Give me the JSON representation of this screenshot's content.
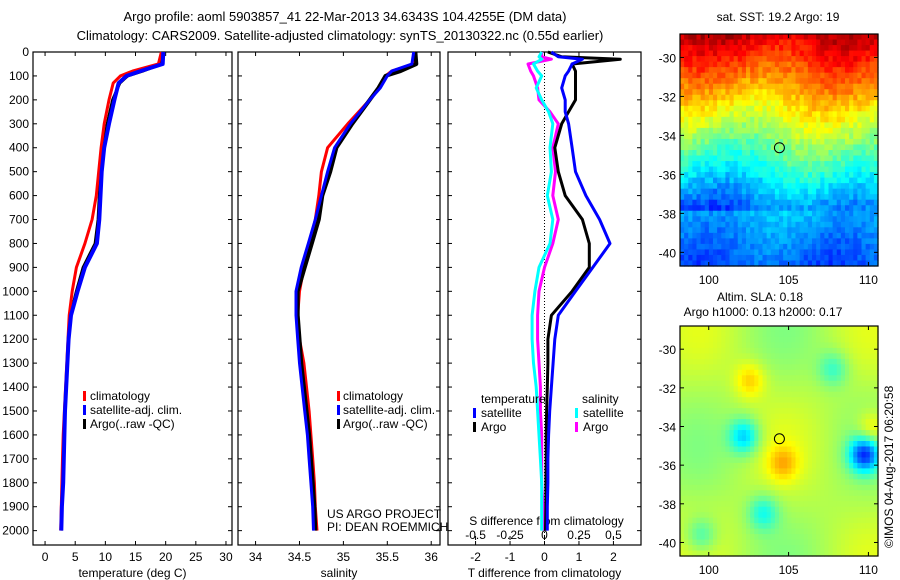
{
  "header": {
    "title_line1": "Argo profile: aoml 5903857_41 22-Mar-2013 34.6343S 104.4255E (DM data)",
    "title_line2": "Climatology: CARS2009. Satellite-adjusted climatology: synTS_20130322.nc (0.55d earlier)"
  },
  "colors": {
    "climatology": "#ff0000",
    "satellite": "#0000ff",
    "argo": "#000000",
    "sal_satellite": "#00ffff",
    "sal_argo": "#ff00ff"
  },
  "chart_data": [
    {
      "id": "temperature",
      "type": "line",
      "xlabel": "temperature (deg C)",
      "ylabel": "",
      "xlim": [
        -2,
        31
      ],
      "ylim": [
        2060,
        0
      ],
      "xticks": [
        0,
        5,
        10,
        15,
        20,
        25,
        30
      ],
      "yticks": [
        0,
        100,
        200,
        300,
        400,
        500,
        600,
        700,
        800,
        900,
        1000,
        1100,
        1200,
        1300,
        1400,
        1500,
        1600,
        1700,
        1800,
        1900,
        2000
      ],
      "legend": [
        "climatology",
        "satellite-adj. clim.",
        "Argo(..raw -QC)"
      ],
      "legend_position": "center",
      "depth": [
        0,
        50,
        80,
        100,
        130,
        200,
        300,
        400,
        500,
        600,
        700,
        800,
        900,
        1000,
        1100,
        1200,
        1300,
        1400,
        1500,
        1600,
        1700,
        1800,
        1900,
        2000
      ],
      "series": [
        {
          "name": "climatology",
          "values": [
            19.3,
            18.8,
            14.5,
            12.5,
            11.3,
            10.6,
            9.8,
            9.3,
            8.9,
            8.5,
            7.8,
            6.6,
            5.2,
            4.5,
            4.0,
            3.8,
            3.6,
            3.4,
            3.2,
            3.0,
            2.9,
            2.8,
            2.7,
            2.6
          ]
        },
        {
          "name": "satellite-adj. clim.",
          "values": [
            19.6,
            19.5,
            15.8,
            13.5,
            12.2,
            11.5,
            10.6,
            9.8,
            9.4,
            9.2,
            9.0,
            8.6,
            6.6,
            5.4,
            4.3,
            3.9,
            3.7,
            3.5,
            3.3,
            3.2,
            3.1,
            3.0,
            2.8,
            2.7
          ]
        },
        {
          "name": "Argo(..raw -QC)",
          "values": [
            19.4,
            19.3,
            16.2,
            13.7,
            12.4,
            11.2,
            10.3,
            9.6,
            9.2,
            9.0,
            8.8,
            8.3,
            6.3,
            5.2,
            4.2,
            3.9,
            3.7,
            3.5,
            3.3,
            3.2,
            3.1,
            3.0,
            2.8,
            2.7
          ]
        }
      ]
    },
    {
      "id": "salinity",
      "type": "line",
      "xlabel": "salinity",
      "xlim": [
        33.8,
        36.1
      ],
      "ylim": [
        2060,
        0
      ],
      "xticks": [
        34,
        34.5,
        35,
        35.5,
        36
      ],
      "xtick_labels": [
        "34",
        "34.5",
        "35",
        "35.5",
        "36"
      ],
      "legend": [
        "climatology",
        "satellite-adj. clim.",
        "Argo(..raw -QC)"
      ],
      "legend_position": "center-right",
      "annotation": [
        "US ARGO PROJECT",
        "PI: DEAN ROEMMICH"
      ],
      "depth": [
        0,
        50,
        80,
        100,
        150,
        200,
        300,
        400,
        500,
        600,
        700,
        800,
        900,
        1000,
        1100,
        1200,
        1300,
        1400,
        1500,
        1600,
        1700,
        1800,
        1900,
        2000
      ],
      "series": [
        {
          "name": "climatology",
          "values": [
            35.82,
            35.8,
            35.55,
            35.48,
            35.4,
            35.3,
            35.05,
            34.82,
            34.75,
            34.72,
            34.68,
            34.62,
            34.55,
            34.5,
            34.48,
            34.5,
            34.55,
            34.58,
            34.61,
            34.63,
            34.65,
            34.67,
            34.68,
            34.7
          ]
        },
        {
          "name": "satellite-adj. clim.",
          "values": [
            35.8,
            35.78,
            35.55,
            35.5,
            35.42,
            35.3,
            35.08,
            34.9,
            34.82,
            34.75,
            34.68,
            34.6,
            34.52,
            34.46,
            34.46,
            34.48,
            34.5,
            34.53,
            34.56,
            34.59,
            34.61,
            34.63,
            34.65,
            34.66
          ]
        },
        {
          "name": "Argo(..raw -QC)",
          "values": [
            35.82,
            35.83,
            35.65,
            35.48,
            35.4,
            35.3,
            35.1,
            34.92,
            34.85,
            34.76,
            34.72,
            34.64,
            34.56,
            34.48,
            34.48,
            34.5,
            34.52,
            34.55,
            34.58,
            34.61,
            34.63,
            34.65,
            34.67,
            34.68
          ]
        }
      ]
    },
    {
      "id": "differences",
      "type": "line",
      "xlabel": "T difference from climatology",
      "xlabel_top": "S difference from climatology",
      "xlim": [
        -2.8,
        2.8
      ],
      "ylim": [
        2060,
        0
      ],
      "xticks": [
        -2,
        -1,
        0,
        1,
        2
      ],
      "xticks_top": [
        -0.5,
        -0.25,
        0,
        0.25,
        0.5
      ],
      "xtick_labels_top": [
        "-0.5",
        "-0.25",
        "0",
        "0.25",
        "0.5"
      ],
      "legend_titles": [
        "temperature",
        "salinity"
      ],
      "legend": [
        "satellite",
        "Argo",
        "satellite",
        "Argo"
      ],
      "legend_position": "bottom-center",
      "depth": [
        0,
        20,
        30,
        50,
        80,
        100,
        150,
        200,
        250,
        300,
        400,
        500,
        600,
        700,
        800,
        900,
        1000,
        1100,
        1200,
        1300,
        1400,
        1500,
        1600,
        1700,
        1800,
        1900,
        2000
      ],
      "series": [
        {
          "name": "temperature satellite",
          "values": [
            0.2,
            0.4,
            1.1,
            0.8,
            0.7,
            0.6,
            0.5,
            0.6,
            0.6,
            0.7,
            0.8,
            0.9,
            1.2,
            1.6,
            1.9,
            1.4,
            0.9,
            0.4,
            0.3,
            0.25,
            0.2,
            0.15,
            0.12,
            0.1,
            0.1,
            0.08,
            0.08
          ]
        },
        {
          "name": "temperature Argo",
          "values": [
            0.1,
            0.5,
            2.2,
            0.8,
            0.9,
            0.9,
            0.9,
            0.9,
            0.7,
            0.5,
            0.3,
            0.4,
            0.6,
            1.1,
            1.3,
            1.3,
            0.8,
            0.2,
            0.1,
            0.1,
            0.08,
            0.06,
            0.05,
            0.05,
            0.04,
            0.04,
            0.03
          ]
        },
        {
          "name": "salinity satellite",
          "values": [
            -0.02,
            -0.04,
            -0.02,
            -0.08,
            -0.05,
            -0.02,
            -0.06,
            -0.02,
            0.03,
            0.06,
            0.04,
            0.05,
            0.02,
            0.06,
            0.04,
            -0.04,
            -0.07,
            -0.09,
            -0.09,
            -0.08,
            -0.06,
            -0.05,
            -0.04,
            -0.03,
            -0.02,
            -0.02,
            -0.02
          ]
        },
        {
          "name": "salinity Argo",
          "values": [
            -0.02,
            -0.02,
            0.05,
            -0.12,
            -0.1,
            -0.08,
            -0.05,
            -0.04,
            0.04,
            0.1,
            0.06,
            0.08,
            0.06,
            0.1,
            0.06,
            0.0,
            -0.04,
            -0.05,
            -0.05,
            -0.04,
            -0.03,
            -0.03,
            -0.02,
            -0.02,
            -0.02,
            -0.01,
            -0.01
          ]
        }
      ]
    },
    {
      "id": "sst_map",
      "type": "heatmap",
      "title": "sat. SST: 19.2 Argo: 19",
      "xlim": [
        98.2,
        110.6
      ],
      "ylim": [
        -40.7,
        -28.8
      ],
      "xticks": [
        100,
        105,
        110
      ],
      "yticks": [
        -30,
        -32,
        -34,
        -36,
        -38,
        -40
      ],
      "marker": {
        "lon": 104.4255,
        "lat": -34.6343
      }
    },
    {
      "id": "sla_map",
      "type": "heatmap",
      "title_line1": "Altim. SLA: 0.18",
      "title_line2": "Argo h1000: 0.13 h2000: 0.17",
      "xlim": [
        98.2,
        110.6
      ],
      "ylim": [
        -40.7,
        -28.8
      ],
      "xticks": [
        100,
        105,
        110
      ],
      "yticks": [
        -30,
        -32,
        -34,
        -36,
        -38,
        -40
      ],
      "marker": {
        "lon": 104.4255,
        "lat": -34.6343
      }
    }
  ],
  "footer": {
    "credit": "©IMOS 04-Aug-2017 06:20:58"
  }
}
